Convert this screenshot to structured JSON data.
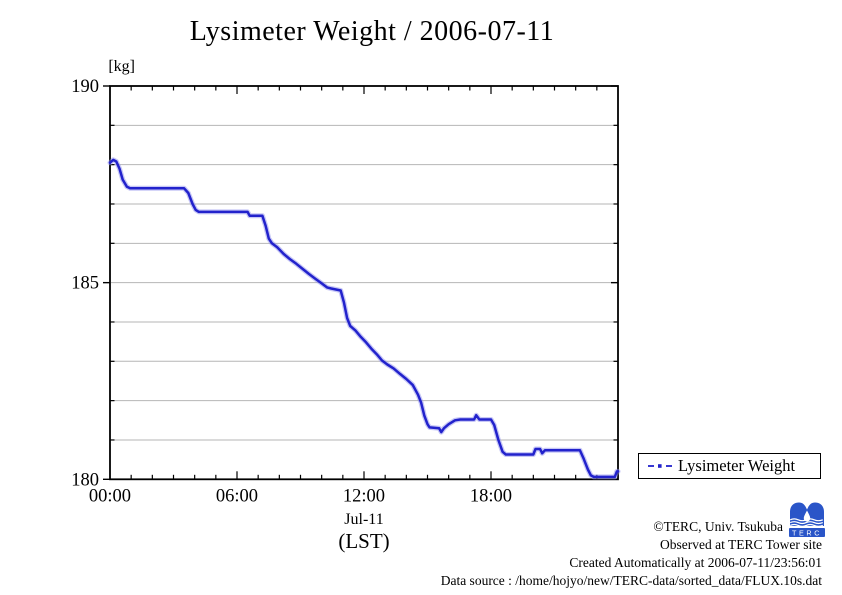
{
  "chart_data": {
    "type": "line",
    "title": "Lysimeter Weight / 2006-07-11",
    "y_unit_label": "[kg]",
    "x_date_label": "Jul-11",
    "x_unit_label": "(LST)",
    "ylim": [
      180,
      190
    ],
    "xlim_hours": [
      0,
      24
    ],
    "grid": "horizontal gridlines every 1 kg, on",
    "grid_color": "#b6b6b6",
    "y_major_ticks": [
      {
        "value": 190,
        "label": "190"
      },
      {
        "value": 185,
        "label": "185"
      },
      {
        "value": 180,
        "label": "180"
      }
    ],
    "y_minor_step": 1,
    "x_major_ticks": [
      {
        "hour": 0,
        "label": "00:00"
      },
      {
        "hour": 6,
        "label": "06:00"
      },
      {
        "hour": 12,
        "label": "12:00"
      },
      {
        "hour": 18,
        "label": "18:00"
      }
    ],
    "x_minor_step_hours": 1,
    "legend": {
      "position": "outside-right-bottom",
      "entries": [
        {
          "label": "Lysimeter Weight",
          "color": "#2222cc"
        }
      ]
    },
    "series": [
      {
        "name": "Lysimeter Weight",
        "color": "#2222cc",
        "halo_color": "#9090ee",
        "x_units": "hours (LST)",
        "y_units": "kg",
        "points": [
          [
            0.0,
            188.05
          ],
          [
            0.15,
            188.12
          ],
          [
            0.3,
            188.08
          ],
          [
            0.45,
            187.9
          ],
          [
            0.6,
            187.62
          ],
          [
            0.8,
            187.44
          ],
          [
            0.95,
            187.4
          ],
          [
            3.5,
            187.4
          ],
          [
            3.7,
            187.28
          ],
          [
            3.9,
            187.0
          ],
          [
            4.05,
            186.85
          ],
          [
            4.2,
            186.8
          ],
          [
            6.5,
            186.8
          ],
          [
            6.6,
            186.7
          ],
          [
            7.2,
            186.7
          ],
          [
            7.35,
            186.45
          ],
          [
            7.5,
            186.12
          ],
          [
            7.65,
            186.0
          ],
          [
            7.9,
            185.9
          ],
          [
            8.2,
            185.73
          ],
          [
            8.5,
            185.6
          ],
          [
            8.8,
            185.48
          ],
          [
            9.1,
            185.35
          ],
          [
            9.4,
            185.22
          ],
          [
            9.7,
            185.1
          ],
          [
            10.0,
            184.98
          ],
          [
            10.25,
            184.88
          ],
          [
            10.45,
            184.85
          ],
          [
            10.9,
            184.8
          ],
          [
            11.05,
            184.5
          ],
          [
            11.2,
            184.1
          ],
          [
            11.35,
            183.9
          ],
          [
            11.6,
            183.78
          ],
          [
            11.85,
            183.62
          ],
          [
            12.1,
            183.48
          ],
          [
            12.35,
            183.32
          ],
          [
            12.6,
            183.18
          ],
          [
            12.85,
            183.02
          ],
          [
            13.1,
            182.92
          ],
          [
            13.4,
            182.82
          ],
          [
            13.7,
            182.68
          ],
          [
            14.0,
            182.55
          ],
          [
            14.3,
            182.4
          ],
          [
            14.55,
            182.15
          ],
          [
            14.7,
            181.95
          ],
          [
            14.85,
            181.62
          ],
          [
            15.0,
            181.4
          ],
          [
            15.1,
            181.32
          ],
          [
            15.55,
            181.3
          ],
          [
            15.65,
            181.2
          ],
          [
            15.78,
            181.3
          ],
          [
            16.0,
            181.4
          ],
          [
            16.3,
            181.5
          ],
          [
            16.55,
            181.52
          ],
          [
            17.2,
            181.52
          ],
          [
            17.3,
            181.63
          ],
          [
            17.45,
            181.52
          ],
          [
            18.0,
            181.52
          ],
          [
            18.15,
            181.38
          ],
          [
            18.35,
            181.0
          ],
          [
            18.55,
            180.7
          ],
          [
            18.7,
            180.63
          ],
          [
            20.0,
            180.63
          ],
          [
            20.1,
            180.77
          ],
          [
            20.32,
            180.77
          ],
          [
            20.42,
            180.66
          ],
          [
            20.55,
            180.74
          ],
          [
            22.2,
            180.74
          ],
          [
            22.38,
            180.52
          ],
          [
            22.58,
            180.25
          ],
          [
            22.72,
            180.1
          ],
          [
            22.85,
            180.06
          ],
          [
            23.85,
            180.06
          ],
          [
            23.95,
            180.2
          ],
          [
            24.0,
            180.2
          ]
        ]
      }
    ]
  },
  "footer": {
    "copyright": "©TERC, Univ. Tsukuba",
    "observed": "Observed at TERC Tower site",
    "created": "Created Automatically at 2006-07-11/23:56:01",
    "datasource": "Data source : /home/hojyo/new/TERC-data/sorted_data/FLUX.10s.dat",
    "logo_text": "TERC",
    "logo_color": "#2a55c8"
  }
}
